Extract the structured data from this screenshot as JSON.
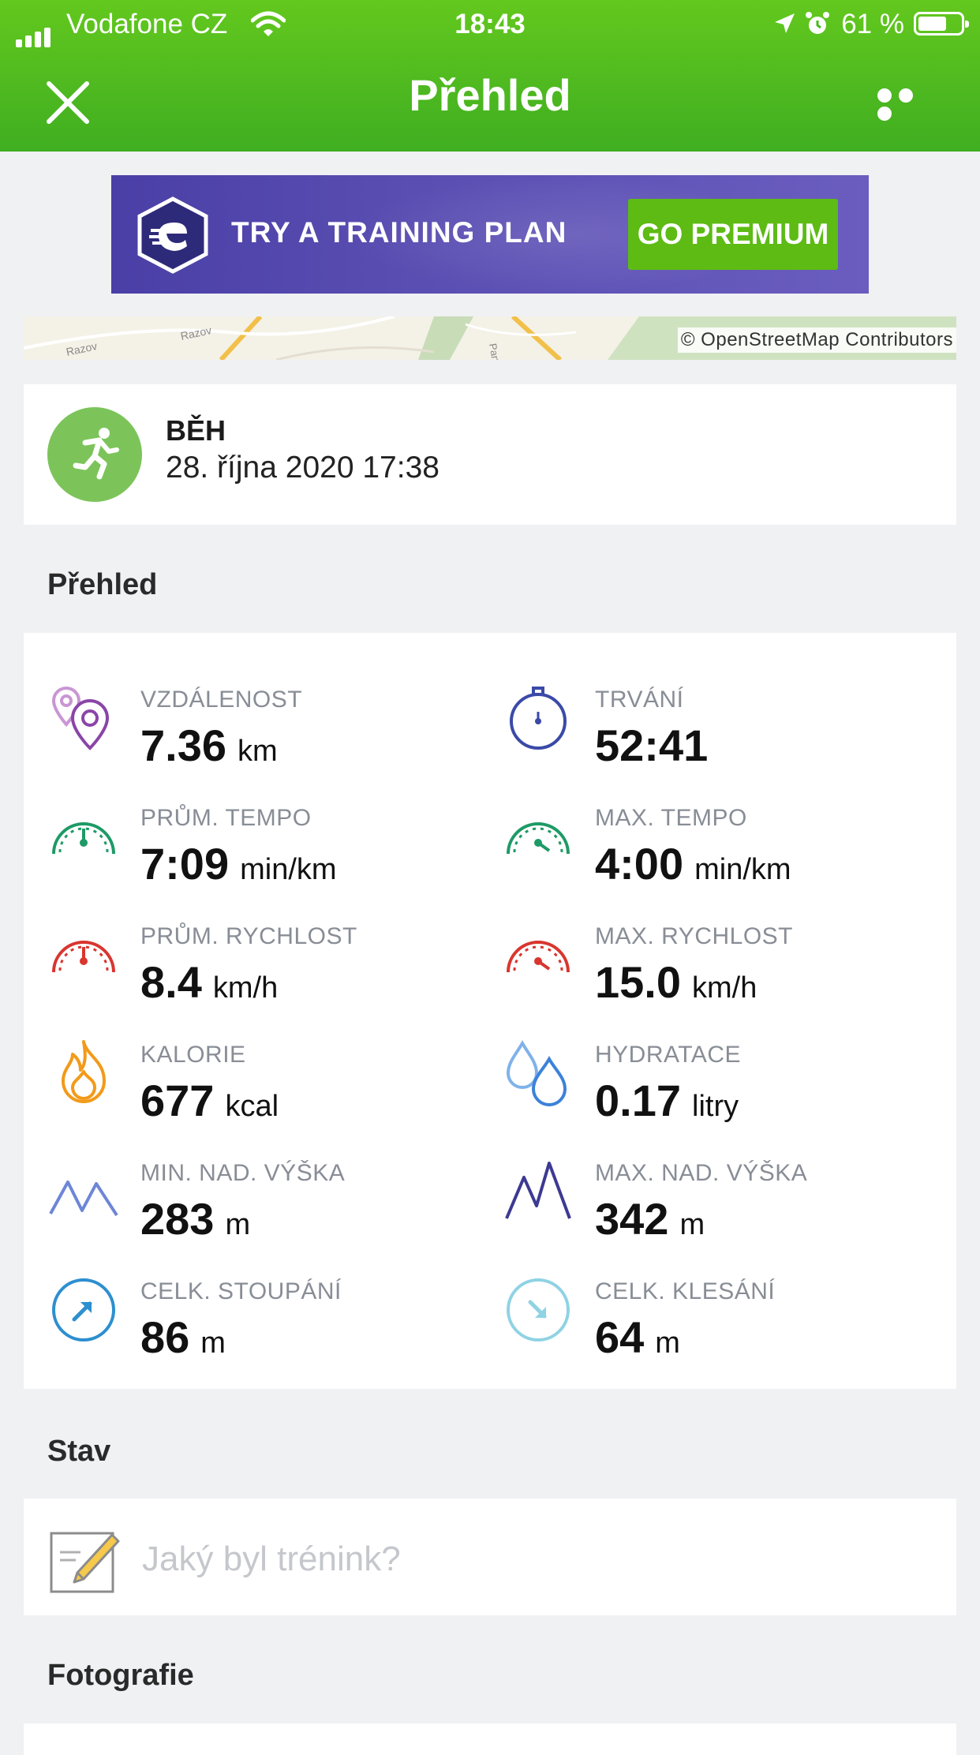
{
  "status_bar": {
    "carrier": "Vodafone CZ",
    "time": "18:43",
    "battery": "61 %"
  },
  "header": {
    "title": "Přehled",
    "close_icon": "close-icon",
    "more_icon": "more-icon"
  },
  "promo": {
    "text": "TRY A TRAINING PLAN",
    "button": "GO PREMIUM",
    "colors": {
      "banner": "#4a3fa6",
      "button": "#5dbb14"
    }
  },
  "map": {
    "credit": "© OpenStreetMap Contributors",
    "labels": [
      "Razov",
      "Razov",
      "Partyz"
    ]
  },
  "activity": {
    "type": "BĚH",
    "date": "28. října 2020 17:38",
    "icon": "running-icon"
  },
  "overview": {
    "title": "Přehled",
    "stats": [
      {
        "label": "VZDÁLENOST",
        "value": "7.36",
        "unit": "km",
        "icon": "distance-pin-icon"
      },
      {
        "label": "TRVÁNÍ",
        "value": "52:41",
        "unit": "",
        "icon": "stopwatch-icon"
      },
      {
        "label": "PRŮM. TEMPO",
        "value": "7:09",
        "unit": "min/km",
        "icon": "avg-pace-gauge-icon"
      },
      {
        "label": "MAX. TEMPO",
        "value": "4:00",
        "unit": "min/km",
        "icon": "max-pace-gauge-icon"
      },
      {
        "label": "PRŮM. RYCHLOST",
        "value": "8.4",
        "unit": "km/h",
        "icon": "avg-speed-gauge-icon"
      },
      {
        "label": "MAX. RYCHLOST",
        "value": "15.0",
        "unit": "km/h",
        "icon": "max-speed-gauge-icon"
      },
      {
        "label": "KALORIE",
        "value": "677",
        "unit": "kcal",
        "icon": "flame-icon"
      },
      {
        "label": "HYDRATACE",
        "value": "0.17",
        "unit": "litry",
        "icon": "water-drops-icon"
      },
      {
        "label": "MIN. NAD. VÝŠKA",
        "value": "283",
        "unit": "m",
        "icon": "min-altitude-icon"
      },
      {
        "label": "MAX. NAD. VÝŠKA",
        "value": "342",
        "unit": "m",
        "icon": "max-altitude-icon"
      },
      {
        "label": "CELK. STOUPÁNÍ",
        "value": "86",
        "unit": "m",
        "icon": "ascent-icon"
      },
      {
        "label": "CELK. KLESÁNÍ",
        "value": "64",
        "unit": "m",
        "icon": "descent-icon"
      }
    ]
  },
  "status_section": {
    "title": "Stav",
    "placeholder": "Jaký byl trénink?"
  },
  "photos_section": {
    "title": "Fotografie"
  },
  "colors": {
    "header": "#4cb821",
    "background": "#f0f1f3",
    "activity_icon": "#7cc45a"
  }
}
